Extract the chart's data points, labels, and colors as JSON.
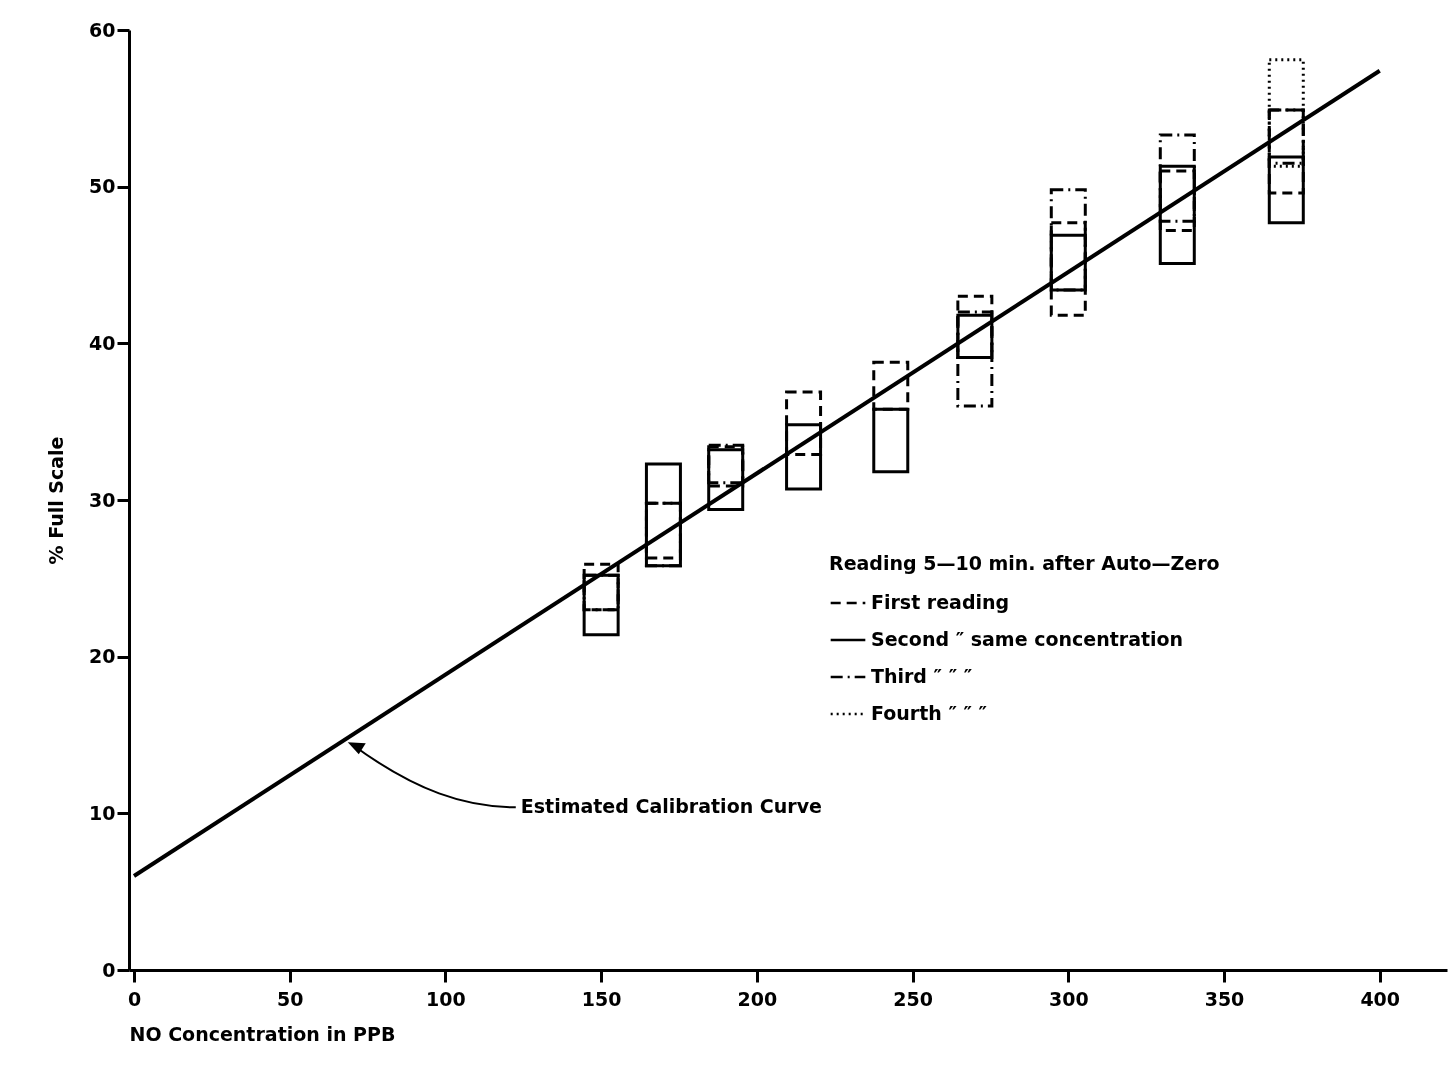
{
  "chart_data": {
    "type": "bar",
    "xlabel": "NO Concentration in PPB",
    "ylabel": "% Full Scale",
    "legend_title": "Reading 5—10 min. after Auto—Zero",
    "legend": "right",
    "xlim": [
      0,
      420
    ],
    "xticks": [
      0,
      50,
      100,
      150,
      200,
      250,
      300,
      350,
      400
    ],
    "ylim": [
      0,
      60
    ],
    "yticks": [
      0,
      10,
      20,
      30,
      40,
      50,
      60
    ],
    "grid": false,
    "annotations": [
      {
        "text": "Estimated Calibration Curve",
        "x": 68,
        "y": 14.6
      }
    ],
    "series": [
      {
        "name": "First reading",
        "color": "#000000",
        "line_style": "dashed",
        "x": [
          150,
          170,
          190,
          215,
          243,
          270,
          300,
          335,
          370
        ],
        "base": [
          23.0,
          26.3,
          30.9,
          32.9,
          35.8,
          39.1,
          41.8,
          47.2,
          49.6
        ],
        "values": [
          2.9,
          3.5,
          2.5,
          4.0,
          3.0,
          3.9,
          5.9,
          3.8,
          5.3
        ]
      },
      {
        "name": "Second ″ same concentration",
        "color": "#000000",
        "line_style": "solid",
        "x": [
          150,
          170,
          190,
          215,
          243,
          270,
          300,
          335,
          370
        ],
        "base": [
          21.4,
          25.8,
          29.4,
          30.7,
          31.8,
          39.1,
          43.4,
          45.1,
          47.7
        ],
        "values": [
          3.8,
          6.5,
          3.8,
          4.1,
          4.0,
          2.7,
          3.5,
          6.2,
          4.2
        ]
      },
      {
        "name": "Third ″ ″ ″",
        "color": "#000000",
        "line_style": "dashdot",
        "x": [
          150,
          170,
          190,
          270,
          300,
          335,
          370
        ],
        "base": [
          23.0,
          25.8,
          31.1,
          36.0,
          43.4,
          47.8,
          51.5
        ],
        "values": [
          2.2,
          4.0,
          2.4,
          6.0,
          6.4,
          5.5,
          3.4
        ]
      },
      {
        "name": "Fourth ″ ″ ″",
        "color": "#000000",
        "line_style": "dotted",
        "x": [
          370
        ],
        "base": [
          51.3
        ],
        "values": [
          6.8
        ]
      },
      {
        "type": "line",
        "color": "#000000",
        "line_style": "solid",
        "x": [
          0,
          400
        ],
        "values": [
          6.0,
          57.4
        ]
      }
    ]
  }
}
